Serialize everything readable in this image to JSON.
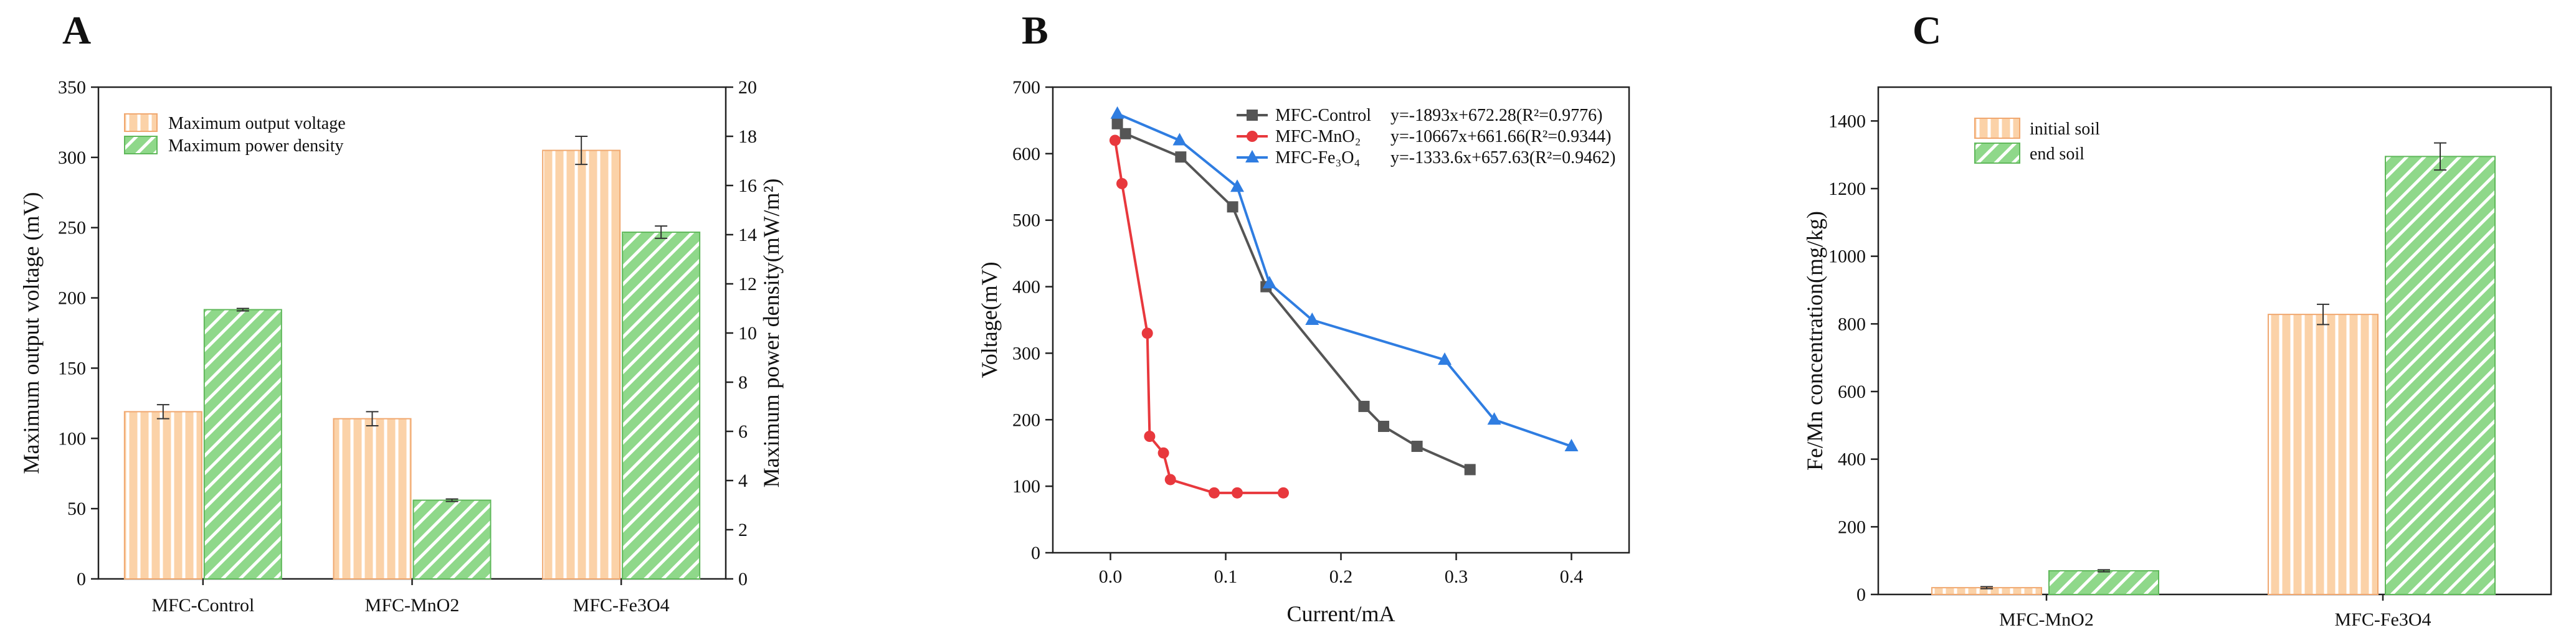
{
  "colors": {
    "orange_fill": "#fbd2a8",
    "orange_stroke": "#f0a870",
    "green_fill": "#8fd88a",
    "green_stroke": "#5fb85a",
    "control_line": "#555555",
    "mno2_line": "#e8383d",
    "fe3o4_line": "#2f7de1"
  },
  "chart_data": [
    {
      "panel": "A",
      "type": "bar",
      "categories": [
        "MFC-Control",
        "MFC-MnO2",
        "MFC-Fe3O4"
      ],
      "series": [
        {
          "name": "Maximum output voltage",
          "axis": "left",
          "values": [
            119,
            114,
            305
          ],
          "errors": [
            5,
            5,
            10
          ]
        },
        {
          "name": "Maximum power density",
          "axis": "right",
          "values": [
            10.95,
            3.2,
            14.1
          ],
          "errors": [
            0.05,
            0.05,
            0.25
          ]
        }
      ],
      "ylabel": "Maximum output voltage (mV)",
      "y2label": "Maximum power density(mW/m²)",
      "ylim": [
        0,
        350
      ],
      "y2lim": [
        0,
        20
      ],
      "yticks": [
        "0",
        "50",
        "100",
        "150",
        "200",
        "250",
        "300",
        "350"
      ],
      "y2ticks": [
        "0",
        "2",
        "4",
        "6",
        "8",
        "10",
        "12",
        "14",
        "16",
        "18",
        "20"
      ],
      "legend_position": "top-left"
    },
    {
      "panel": "B",
      "type": "line",
      "xlabel": "Current/mA",
      "ylabel": "Voltage(mV)",
      "xlim": [
        -0.05,
        0.45
      ],
      "ylim": [
        0,
        700
      ],
      "xticks": [
        "0.0",
        "0.1",
        "0.2",
        "0.3",
        "0.4"
      ],
      "yticks": [
        "0",
        "100",
        "200",
        "300",
        "400",
        "500",
        "600",
        "700"
      ],
      "series": [
        {
          "name": "MFC-Control",
          "marker": "square",
          "equation": "y=-1893x+672.28(R²=0.9776)",
          "x": [
            0.006,
            0.013,
            0.061,
            0.106,
            0.135,
            0.22,
            0.237,
            0.266,
            0.312
          ],
          "y": [
            645,
            630,
            595,
            520,
            400,
            220,
            190,
            160,
            125
          ]
        },
        {
          "name": "MFC-MnO₂",
          "marker": "circle",
          "equation": "y=-10667x+661.66(R²=0.9344)",
          "x": [
            0.004,
            0.01,
            0.032,
            0.034,
            0.046,
            0.052,
            0.09,
            0.11,
            0.15
          ],
          "y": [
            620,
            555,
            330,
            175,
            150,
            110,
            90,
            90,
            90
          ]
        },
        {
          "name": "MFC-Fe₃O₄",
          "marker": "triangle",
          "equation": "y=-1333.6x+657.63(R²=0.9462)",
          "x": [
            0.006,
            0.06,
            0.11,
            0.138,
            0.175,
            0.29,
            0.333,
            0.4
          ],
          "y": [
            660,
            620,
            550,
            405,
            350,
            290,
            200,
            160
          ]
        }
      ],
      "legend_position": "top-right"
    },
    {
      "panel": "C",
      "type": "bar",
      "categories": [
        "MFC-MnO2",
        "MFC-Fe3O4"
      ],
      "series": [
        {
          "name": "initial soil",
          "values": [
            20,
            828
          ],
          "errors": [
            3,
            30
          ]
        },
        {
          "name": "end soil",
          "values": [
            70,
            1295
          ],
          "errors": [
            3,
            40
          ]
        }
      ],
      "ylabel": "Fe/Mn concentration(mg/kg)",
      "ylim": [
        0,
        1500
      ],
      "yticks": [
        "0",
        "200",
        "400",
        "600",
        "800",
        "1000",
        "1200",
        "1400"
      ],
      "legend_position": "top-left"
    }
  ]
}
